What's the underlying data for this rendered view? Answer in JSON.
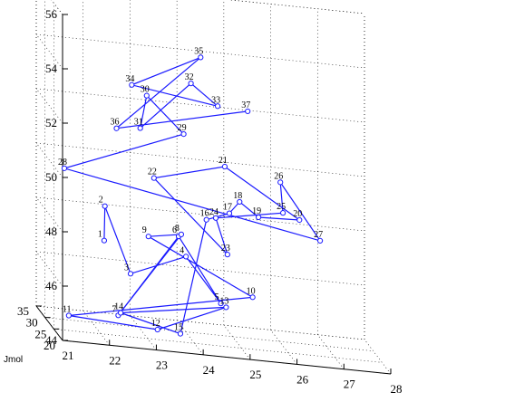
{
  "brand": "Jmol",
  "chart_data": {
    "type": "line3d",
    "title": "",
    "xlabel": "",
    "ylabel": "",
    "zlabel": "",
    "xlim": [
      21,
      28
    ],
    "ylim": [
      20,
      35
    ],
    "zlim": [
      44,
      56
    ],
    "x_ticks": [
      21,
      22,
      23,
      24,
      25,
      26,
      27,
      28
    ],
    "y_ticks": [
      20,
      25,
      30,
      35
    ],
    "z_ticks": [
      44,
      46,
      48,
      50,
      52,
      54,
      56
    ],
    "grid": true,
    "series_color": "#1a1aff",
    "points": [
      {
        "label": "1",
        "x": 22.0,
        "y": 23.0,
        "z": 47.6
      },
      {
        "label": "2",
        "x": 22.0,
        "y": 22.6,
        "z": 48.9
      },
      {
        "label": "3",
        "x": 22.6,
        "y": 24.0,
        "z": 46.4
      },
      {
        "label": "4",
        "x": 23.8,
        "y": 24.5,
        "z": 47.2
      },
      {
        "label": "5",
        "x": 24.5,
        "y": 23.3,
        "z": 45.7
      },
      {
        "label": "6",
        "x": 23.7,
        "y": 26.0,
        "z": 47.8
      },
      {
        "label": "7",
        "x": 22.3,
        "y": 23.0,
        "z": 44.9
      },
      {
        "label": "8",
        "x": 23.7,
        "y": 24.5,
        "z": 48.0
      },
      {
        "label": "9",
        "x": 23.0,
        "y": 24.5,
        "z": 47.8
      },
      {
        "label": "10",
        "x": 25.2,
        "y": 23.9,
        "z": 46.0
      },
      {
        "label": "11",
        "x": 21.2,
        "y": 21.8,
        "z": 44.8
      },
      {
        "label": "12",
        "x": 23.1,
        "y": 22.0,
        "z": 44.6
      },
      {
        "label": "13",
        "x": 24.6,
        "y": 23.0,
        "z": 45.6
      },
      {
        "label": "14",
        "x": 22.4,
        "y": 24.3,
        "z": 44.9
      },
      {
        "label": "15",
        "x": 23.7,
        "y": 25.0,
        "z": 44.3
      },
      {
        "label": "16",
        "x": 24.3,
        "y": 26.2,
        "z": 48.5
      },
      {
        "label": "17",
        "x": 24.8,
        "y": 26.5,
        "z": 48.8
      },
      {
        "label": "18",
        "x": 25.0,
        "y": 26.0,
        "z": 49.3
      },
      {
        "label": "19",
        "x": 25.5,
        "y": 28.6,
        "z": 48.6
      },
      {
        "label": "20",
        "x": 26.4,
        "y": 29.3,
        "z": 48.6
      },
      {
        "label": "21",
        "x": 24.8,
        "y": 29.1,
        "z": 50.3
      },
      {
        "label": "22",
        "x": 23.2,
        "y": 26.7,
        "z": 49.8
      },
      {
        "label": "23",
        "x": 24.7,
        "y": 24.9,
        "z": 47.4
      },
      {
        "label": "24",
        "x": 24.5,
        "y": 26.2,
        "z": 48.6
      },
      {
        "label": "25",
        "x": 26.0,
        "y": 28.0,
        "z": 48.9
      },
      {
        "label": "26",
        "x": 26.0,
        "y": 29.5,
        "z": 49.9
      },
      {
        "label": "27",
        "x": 26.8,
        "y": 28.2,
        "z": 48.0
      },
      {
        "label": "28",
        "x": 21.3,
        "y": 27.0,
        "z": 49.8
      },
      {
        "label": "29",
        "x": 23.8,
        "y": 25.8,
        "z": 51.6
      },
      {
        "label": "30",
        "x": 23.0,
        "y": 25.5,
        "z": 52.9
      },
      {
        "label": "31",
        "x": 22.9,
        "y": 26.5,
        "z": 51.6
      },
      {
        "label": "32",
        "x": 24.0,
        "y": 27.0,
        "z": 53.4
      },
      {
        "label": "33",
        "x": 24.6,
        "y": 27.8,
        "z": 52.6
      },
      {
        "label": "34",
        "x": 22.7,
        "y": 26.0,
        "z": 53.2
      },
      {
        "label": "35",
        "x": 24.3,
        "y": 29.5,
        "z": 54.2
      },
      {
        "label": "36",
        "x": 22.3,
        "y": 24.0,
        "z": 51.7
      },
      {
        "label": "37",
        "x": 25.3,
        "y": 29.4,
        "z": 52.4
      }
    ],
    "path_order": [
      1,
      2,
      3,
      4,
      5,
      6,
      7,
      8,
      9,
      10,
      11,
      12,
      13,
      14,
      15,
      16,
      17,
      18,
      19,
      20,
      21,
      22,
      23,
      24,
      25,
      26,
      27,
      28,
      29,
      30,
      31,
      32,
      33,
      34,
      35,
      36,
      37
    ]
  }
}
